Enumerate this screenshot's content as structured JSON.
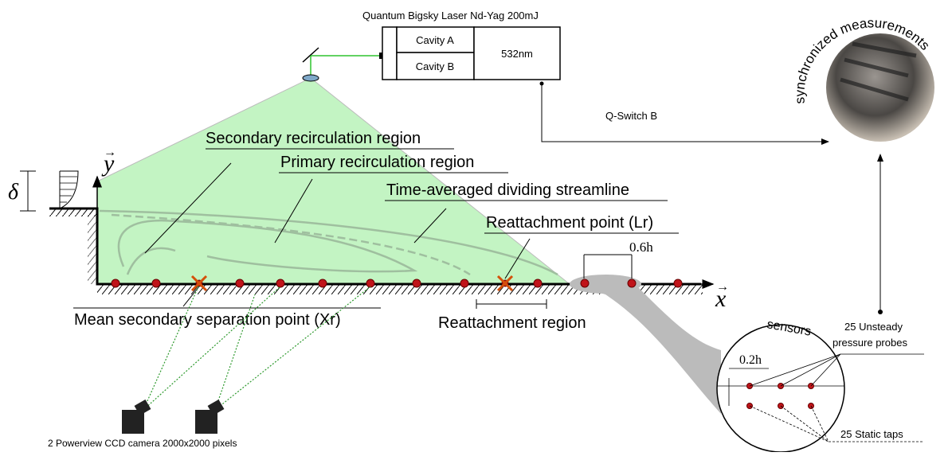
{
  "laser": {
    "title": "Quantum Bigsky Laser Nd-Yag 200mJ",
    "cavity_a": "Cavity A",
    "cavity_b": "Cavity B",
    "wavelength": "532nm",
    "trigger": "Q-Switch B"
  },
  "photo_label": "synchronized measurements",
  "flow": {
    "delta": "δ",
    "y_axis": "y",
    "x_axis": "x",
    "secondary": "Secondary recirculation region",
    "primary": "Primary recirculation region",
    "streamline": "Time-averaged dividing streamline",
    "reattachment_point": "Reattachment point (Lr)",
    "spacing_large": "0.6h",
    "separation_point": "Mean secondary separation point (Xr)",
    "reattachment_region": "Reattachment region"
  },
  "cameras": "2 Powerview CCD camera 2000x2000 pixels",
  "sensors": {
    "title": "sensors",
    "probes_line1": "25 Unsteady",
    "probes_line2": "pressure probes",
    "spacing_small": "0.2h",
    "taps": "25 Static taps"
  }
}
